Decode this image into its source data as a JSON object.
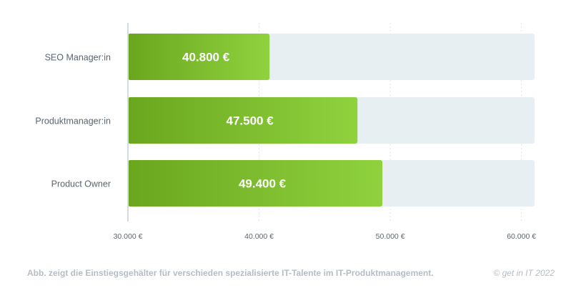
{
  "chart_data": {
    "type": "bar",
    "orientation": "horizontal",
    "categories": [
      "SEO Manager:in",
      "Produktmanager:in",
      "Product Owner"
    ],
    "values": [
      40800,
      47500,
      49400
    ],
    "value_labels": [
      "40.800 €",
      "47.500 €",
      "49.400 €"
    ],
    "xlim": [
      30000,
      61000
    ],
    "xticks": [
      30000,
      40000,
      50000,
      60000
    ],
    "xtick_labels": [
      "30.000 €",
      "40.000 €",
      "50.000 €",
      "60.000 €"
    ],
    "grid": true,
    "title": "",
    "xlabel": "",
    "ylabel": ""
  },
  "caption": "Abb. zeigt die Einstiegsgehälter für verschieden spezialisierte IT-Talente im IT-Produktmanagement.",
  "copyright": "© get in IT 2022",
  "colors": {
    "bar_start": "#6aa61e",
    "bar_end": "#8fd23e",
    "track": "#e8eff3",
    "grid": "#dde3e8"
  }
}
